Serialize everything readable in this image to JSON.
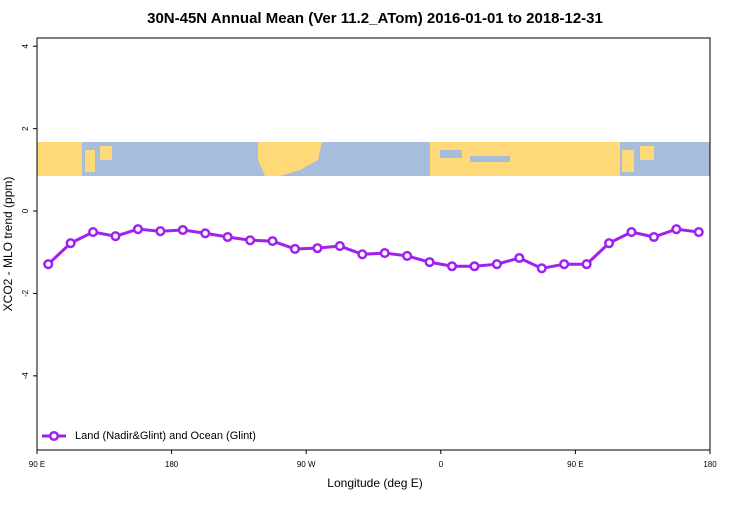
{
  "chart_data": {
    "type": "line",
    "title": "30N-45N Annual Mean (Ver 11.2_ATom)   2016-01-01 to 2018-12-31",
    "x_label": "Longitude (deg E)",
    "y_label": "XCO2 - MLO trend (ppm)",
    "x": [
      97.5,
      112.5,
      127.5,
      142.5,
      157.5,
      172.5,
      187.5,
      202.5,
      217.5,
      232.5,
      247.5,
      262.5,
      277.5,
      292.5,
      307.5,
      322.5,
      337.5,
      352.5,
      367.5,
      382.5,
      397.5,
      412.5,
      427.5,
      442.5,
      457.5,
      472.5,
      487.5,
      502.5,
      517.5,
      532.5
    ],
    "series": [
      {
        "name": "Land (Nadir&Glint) and Ocean (Glint)",
        "color": "#a020f0",
        "values": [
          -1.29,
          -0.78,
          -0.51,
          -0.61,
          -0.44,
          -0.49,
          -0.46,
          -0.54,
          -0.63,
          -0.71,
          -0.73,
          -0.92,
          -0.9,
          -0.85,
          -1.05,
          -1.02,
          -1.09,
          -1.24,
          -1.34,
          -1.34,
          -1.29,
          -1.14,
          -1.39,
          -1.29,
          -1.29,
          -0.78,
          -0.51,
          -0.63,
          -0.44,
          -0.51
        ]
      }
    ],
    "xlim": [
      90,
      540
    ],
    "xticks": [
      {
        "value": 90,
        "label": "90 E"
      },
      180,
      {
        "value": 270,
        "label": "90 W"
      },
      {
        "value": 360,
        "label": "0"
      },
      {
        "value": 450,
        "label": "90 E"
      },
      {
        "value": 540,
        "label": "180"
      }
    ],
    "ylim": [
      -5.8,
      4.2
    ],
    "yticks": [
      -4,
      -2,
      0,
      2,
      4
    ],
    "legend": "bottom-left"
  }
}
